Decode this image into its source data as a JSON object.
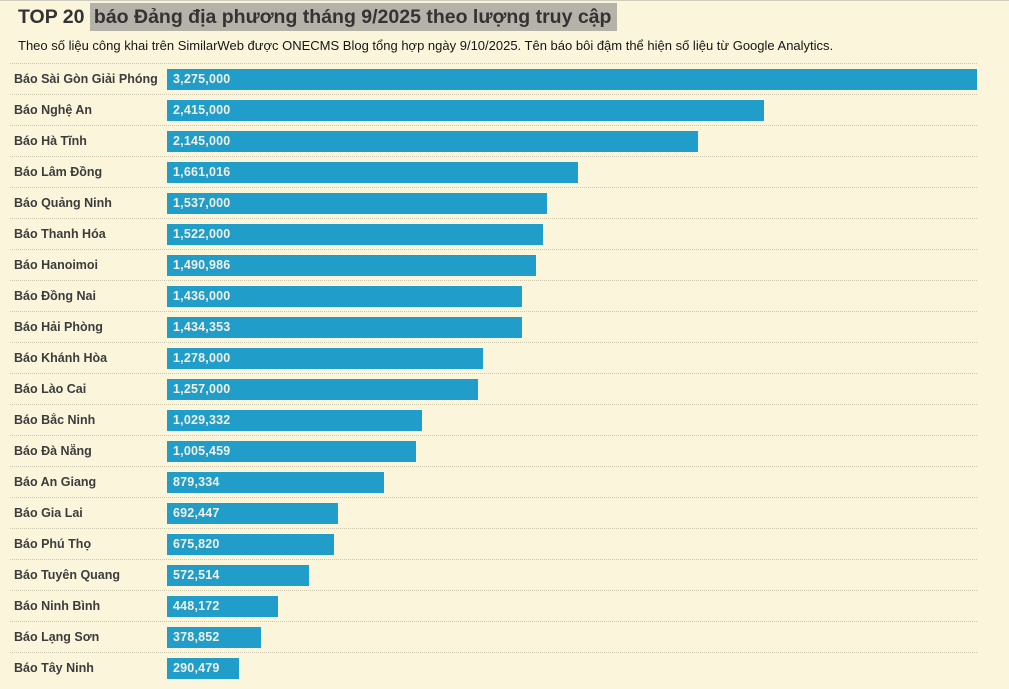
{
  "header": {
    "title_prefix": "TOP 20 ",
    "title_highlight": "báo Đảng địa phương tháng 9/2025 theo lượng truy cập",
    "subtitle": "Theo số liệu công khai trên SimilarWeb được ONECMS Blog tổng hợp ngày 9/10/2025. Tên báo bôi đậm thể hiện số liệu từ Google Analytics."
  },
  "colors": {
    "background": "#FAF5DB",
    "bar": "#219DC9",
    "title_highlight_bg": "#B5B2A9",
    "label_text": "#3C3C3C",
    "bar_value_text": "#F2F0E5",
    "separator": "#CBC7AF"
  },
  "chart_data": {
    "type": "bar",
    "orientation": "horizontal",
    "title": "TOP 20 báo Đảng địa phương tháng 9/2025 theo lượng truy cập",
    "subtitle": "Theo số liệu công khai trên SimilarWeb được ONECMS Blog tổng hợp ngày 9/10/2025. Tên báo bôi đậm thể hiện số liệu từ Google Analytics.",
    "xlabel": "",
    "ylabel": "",
    "xlim": [
      0,
      3275000
    ],
    "grid": "dotted row separators",
    "value_labels_position": "inside-bar-left",
    "categories": [
      "Báo Sài Gòn Giải Phóng",
      "Báo Nghệ An",
      "Báo Hà Tĩnh",
      "Báo Lâm Đồng",
      "Báo Quảng Ninh",
      "Báo Thanh Hóa",
      "Báo Hanoimoi",
      "Báo Đồng Nai",
      "Báo Hải Phòng",
      "Báo Khánh Hòa",
      "Báo Lào Cai",
      "Báo Bắc Ninh",
      "Báo Đà Nẵng",
      "Báo An Giang",
      "Báo Gia Lai",
      "Báo Phú Thọ",
      "Báo Tuyên Quang",
      "Báo Ninh Bình",
      "Báo Lạng Sơn",
      "Báo Tây Ninh"
    ],
    "values": [
      3275000,
      2415000,
      2145000,
      1661016,
      1537000,
      1522000,
      1490986,
      1436000,
      1434353,
      1278000,
      1257000,
      1029332,
      1005459,
      879334,
      692447,
      675820,
      572514,
      448172,
      378852,
      290479
    ],
    "value_labels": [
      "3,275,000",
      "2,415,000",
      "2,145,000",
      "1,661,016",
      "1,537,000",
      "1,522,000",
      "1,490,986",
      "1,436,000",
      "1,434,353",
      "1,278,000",
      "1,257,000",
      "1,029,332",
      "1,005,459",
      "879,334",
      "692,447",
      "675,820",
      "572,514",
      "448,172",
      "378,852",
      "290,479"
    ]
  }
}
